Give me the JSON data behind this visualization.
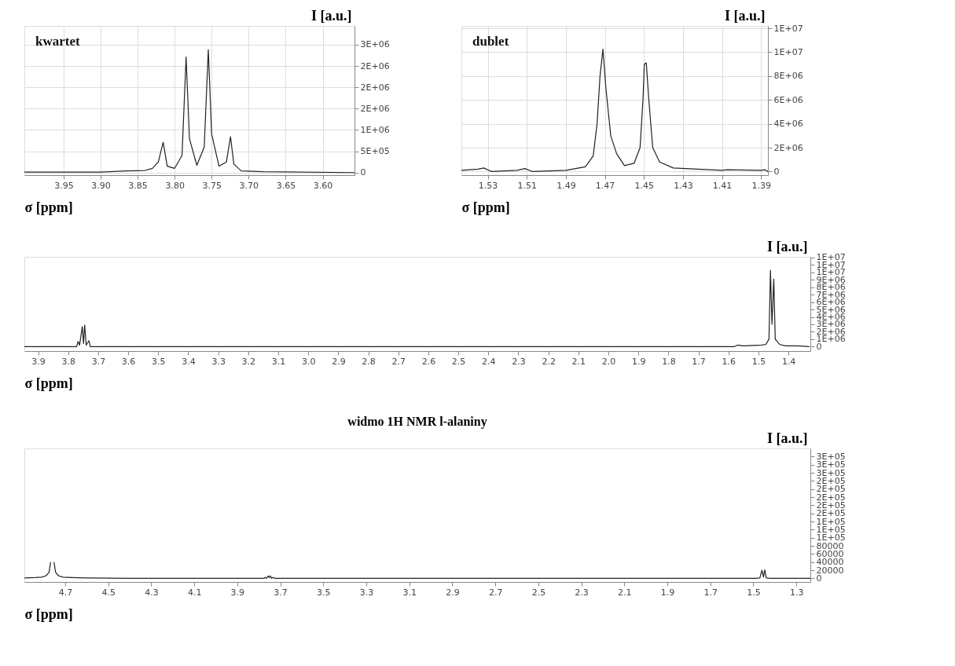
{
  "chart_data": [
    {
      "type": "line",
      "title": "widmo 1H NMR l-alaniny",
      "xlabel": "σ [ppm]",
      "ylabel": "I [a.u.]",
      "xlim": [
        4.89,
        1.235
      ],
      "xticks": [
        4.7,
        4.5,
        4.3,
        4.1,
        3.9,
        3.7,
        3.5,
        3.3,
        3.1,
        2.9,
        2.7,
        2.5,
        2.3,
        2.1,
        1.9,
        1.7,
        1.5,
        1.3
      ],
      "ylim": [
        -9000,
        320000
      ],
      "yticks": [
        0,
        20000,
        40000,
        60000,
        80000,
        {
          "value": 100000,
          "label": "1E+05"
        },
        {
          "value": 120000,
          "label": "1E+05"
        },
        {
          "value": 140000,
          "label": "1E+05"
        },
        {
          "value": 160000,
          "label": "2E+05"
        },
        {
          "value": 180000,
          "label": "2E+05"
        },
        {
          "value": 200000,
          "label": "2E+05"
        },
        {
          "value": 220000,
          "label": "2E+05"
        },
        {
          "value": 240000,
          "label": "2E+05"
        },
        {
          "value": 260000,
          "label": "3E+05"
        },
        {
          "value": 280000,
          "label": "3E+05"
        },
        {
          "value": 300000,
          "label": "3E+05"
        }
      ],
      "grid": false,
      "series": [
        {
          "color": "#222222",
          "x": [
            4.89,
            4.84,
            4.81,
            4.79,
            4.775,
            4.768,
            4.763,
            4.757,
            4.752,
            4.745,
            4.73,
            4.71,
            4.67,
            4.6,
            4.4,
            4.0,
            3.78,
            3.769,
            3.764,
            3.756,
            3.751,
            3.746,
            3.741,
            3.733,
            3.725,
            3.0,
            1.49,
            1.47,
            1.46,
            1.453,
            1.447,
            1.44,
            1.42,
            1.235
          ],
          "values": [
            1000,
            2000,
            3000,
            6000,
            15000,
            40000,
            null,
            null,
            40000,
            15000,
            6000,
            3000,
            2000,
            1000,
            0,
            0,
            0,
            2000,
            0,
            6000,
            2000,
            6000,
            0,
            2000,
            0,
            0,
            0,
            1000,
            20000,
            3000,
            21000,
            1000,
            0,
            0
          ]
        }
      ]
    },
    {
      "type": "line",
      "xlabel": "σ [ppm]",
      "ylabel": "I [a.u.]",
      "xlim": [
        3.946,
        1.327
      ],
      "xticks": [
        3.9,
        3.8,
        3.7,
        3.6,
        3.5,
        3.4,
        3.3,
        3.2,
        3.1,
        {
          "value": 3,
          "label": "3.0"
        },
        2.9,
        2.8,
        2.7,
        2.6,
        2.5,
        2.4,
        2.3,
        2.2,
        2.1,
        {
          "value": 2,
          "label": "2.0"
        },
        1.9,
        1.8,
        1.7,
        1.6,
        1.5,
        1.4
      ],
      "ylim": [
        -600000,
        12100000
      ],
      "yticks": [
        0,
        {
          "value": 1000000,
          "label": "1E+06"
        },
        {
          "value": 2000000,
          "label": "2E+06"
        },
        {
          "value": 3000000,
          "label": "3E+06"
        },
        {
          "value": 4000000,
          "label": "4E+06"
        },
        {
          "value": 5000000,
          "label": "5E+06"
        },
        {
          "value": 6000000,
          "label": "6E+06"
        },
        {
          "value": 7000000,
          "label": "7E+06"
        },
        {
          "value": 8000000,
          "label": "8E+06"
        },
        {
          "value": 9000000,
          "label": "9E+06"
        },
        {
          "value": 10000000,
          "label": "1E+07"
        },
        {
          "value": 11000000,
          "label": "1E+07"
        },
        {
          "value": 12000000,
          "label": "1E+07"
        }
      ],
      "grid": false,
      "series": [
        {
          "color": "#222222",
          "x": [
            3.946,
            3.78,
            3.772,
            3.767,
            3.762,
            3.753,
            3.749,
            3.745,
            3.74,
            3.731,
            3.726,
            3.7,
            1.58,
            1.57,
            1.55,
            1.49,
            1.475,
            1.465,
            1.46,
            1.455,
            1.449,
            1.444,
            1.43,
            1.41,
            1.37,
            1.33
          ],
          "values": [
            0,
            0,
            0,
            700000,
            200000,
            2700000,
            400000,
            2900000,
            200000,
            800000,
            0,
            0,
            0,
            200000,
            100000,
            200000,
            300000,
            1000000,
            10300000,
            3000000,
            9100000,
            1000000,
            300000,
            100000,
            100000,
            0
          ]
        }
      ]
    },
    {
      "type": "line",
      "xlabel": "σ [ppm]",
      "ylabel": "I [a.u.]",
      "annotations": [
        "kwartet"
      ],
      "xlim": [
        4.003,
        3.557
      ],
      "xticks": [
        3.95,
        {
          "value": 3.9,
          "label": "3.90"
        },
        3.85,
        {
          "value": 3.8,
          "label": "3.80"
        },
        3.75,
        {
          "value": 3.7,
          "label": "3.70"
        },
        3.65,
        {
          "value": 3.6,
          "label": "3.60"
        }
      ],
      "ylim": [
        -60000,
        3440000
      ],
      "yticks": [
        0,
        {
          "value": 500000,
          "label": "5E+05"
        },
        {
          "value": 1000000,
          "label": "1E+06"
        },
        {
          "value": 1500000,
          "label": "2E+06"
        },
        {
          "value": 2000000,
          "label": "2E+06"
        },
        {
          "value": 2500000,
          "label": "2E+06"
        },
        {
          "value": 3000000,
          "label": "3E+06"
        }
      ],
      "grid": true,
      "series": [
        {
          "color": "#222222",
          "x": [
            4.003,
            3.9,
            3.865,
            3.84,
            3.83,
            3.822,
            3.8155,
            3.81,
            3.8,
            3.79,
            3.7845,
            3.78,
            3.77,
            3.76,
            3.7545,
            3.75,
            3.74,
            3.73,
            3.7245,
            3.72,
            3.71,
            3.68,
            3.557
          ],
          "values": [
            10000,
            10000,
            40000,
            50000,
            100000,
            250000,
            710000,
            150000,
            100000,
            400000,
            2710000,
            800000,
            170000,
            600000,
            2880000,
            900000,
            150000,
            250000,
            840000,
            200000,
            40000,
            20000,
            0
          ]
        }
      ]
    },
    {
      "type": "line",
      "xlabel": "σ [ppm]",
      "ylabel": "I [a.u.]",
      "annotations": [
        "dublet"
      ],
      "xlim": [
        1.5435,
        1.3865
      ],
      "xticks": [
        1.53,
        1.51,
        1.49,
        1.47,
        1.45,
        1.43,
        1.41,
        1.39
      ],
      "ylim": [
        -300000,
        12200000
      ],
      "yticks": [
        0,
        {
          "value": 2000000,
          "label": "2E+06"
        },
        {
          "value": 4000000,
          "label": "4E+06"
        },
        {
          "value": 6000000,
          "label": "6E+06"
        },
        {
          "value": 8000000,
          "label": "8E+06"
        },
        {
          "value": 10000000,
          "label": "1E+07"
        },
        {
          "value": 12000000,
          "label": "1E+07"
        }
      ],
      "grid": true,
      "series": [
        {
          "color": "#222222",
          "x": [
            1.5435,
            1.535,
            1.532,
            1.528,
            1.515,
            1.511,
            1.507,
            1.49,
            1.48,
            1.476,
            1.474,
            1.4725,
            1.471,
            1.4695,
            1.467,
            1.464,
            1.46,
            1.455,
            1.452,
            1.4505,
            1.4498,
            1.4488,
            1.4475,
            1.4455,
            1.442,
            1.435,
            1.41,
            1.4075,
            1.39,
            1.388,
            1.3865
          ],
          "values": [
            100000,
            200000,
            300000,
            0,
            100000,
            250000,
            0,
            100000,
            400000,
            1300000,
            4000000,
            8000000,
            10250000,
            7000000,
            3000000,
            1500000,
            500000,
            700000,
            2000000,
            6000000,
            9000000,
            9100000,
            6000000,
            2000000,
            800000,
            300000,
            100000,
            150000,
            100000,
            150000,
            0
          ]
        }
      ]
    }
  ]
}
